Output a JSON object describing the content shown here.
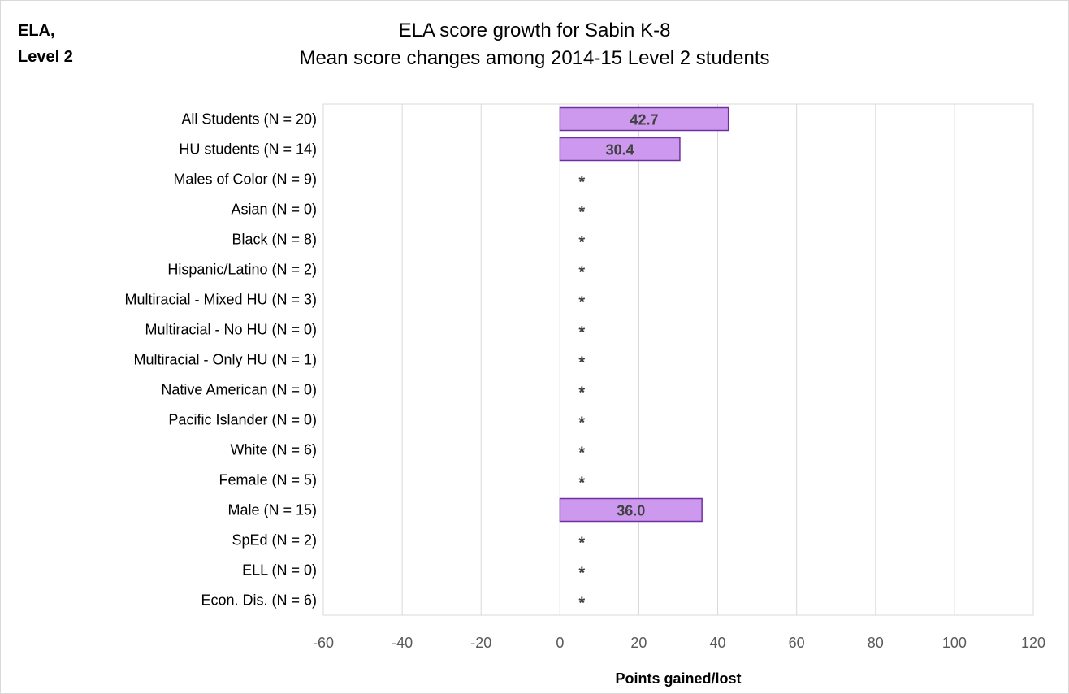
{
  "corner_label": "ELA,\nLevel 2",
  "chart_data": {
    "type": "bar",
    "orientation": "horizontal",
    "title": "ELA score growth for Sabin K-8",
    "subtitle": "Mean score changes among 2014-15 Level 2 students",
    "xlabel": "Points gained/lost",
    "xlim": [
      -60,
      120
    ],
    "xticks": [
      -60,
      -40,
      -20,
      0,
      20,
      40,
      60,
      80,
      100,
      120
    ],
    "grid": true,
    "bar_color": "#cc99ee",
    "bar_border_color": "#7030a0",
    "suppressed_marker": "*",
    "categories": [
      "All Students (N = 20)",
      "HU students (N = 14)",
      "Males of Color (N = 9)",
      "Asian (N = 0)",
      "Black (N = 8)",
      "Hispanic/Latino (N = 2)",
      "Multiracial - Mixed HU (N = 3)",
      "Multiracial - No HU (N = 0)",
      "Multiracial - Only HU (N = 1)",
      "Native American (N = 0)",
      "Pacific Islander (N = 0)",
      "White (N = 6)",
      "Female (N = 5)",
      "Male (N = 15)",
      "SpEd (N = 2)",
      "ELL (N = 0)",
      "Econ. Dis. (N = 6)"
    ],
    "values": [
      42.7,
      30.4,
      null,
      null,
      null,
      null,
      null,
      null,
      null,
      null,
      null,
      null,
      null,
      36.0,
      null,
      null,
      null
    ],
    "data_labels": [
      "42.7",
      "30.4",
      "*",
      "*",
      "*",
      "*",
      "*",
      "*",
      "*",
      "*",
      "*",
      "*",
      "*",
      "36.0",
      "*",
      "*",
      "*"
    ]
  }
}
